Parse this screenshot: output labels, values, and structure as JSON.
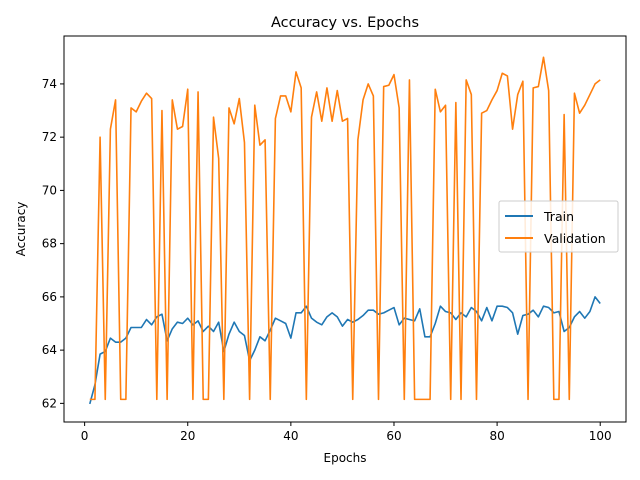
{
  "chart_data": {
    "type": "line",
    "title": "Accuracy vs. Epochs",
    "xlabel": "Epochs",
    "ylabel": "Accuracy",
    "xlim": [
      -4,
      105
    ],
    "ylim": [
      61.3,
      75.8
    ],
    "xticks": [
      0,
      20,
      40,
      60,
      80,
      100
    ],
    "yticks": [
      62,
      64,
      66,
      68,
      70,
      72,
      74
    ],
    "grid": false,
    "legend_position": "center-right",
    "x": [
      1,
      2,
      3,
      4,
      5,
      6,
      7,
      8,
      9,
      10,
      11,
      12,
      13,
      14,
      15,
      16,
      17,
      18,
      19,
      20,
      21,
      22,
      23,
      24,
      25,
      26,
      27,
      28,
      29,
      30,
      31,
      32,
      33,
      34,
      35,
      36,
      37,
      38,
      39,
      40,
      41,
      42,
      43,
      44,
      45,
      46,
      47,
      48,
      49,
      50,
      51,
      52,
      53,
      54,
      55,
      56,
      57,
      58,
      59,
      60,
      61,
      62,
      63,
      64,
      65,
      66,
      67,
      68,
      69,
      70,
      71,
      72,
      73,
      74,
      75,
      76,
      77,
      78,
      79,
      80,
      81,
      82,
      83,
      84,
      85,
      86,
      87,
      88,
      89,
      90,
      91,
      92,
      93,
      94,
      95,
      96,
      97,
      98,
      99,
      100
    ],
    "series": [
      {
        "name": "Train",
        "color": "#1f77b4",
        "values": [
          61.98,
          62.7,
          63.85,
          63.95,
          64.45,
          64.3,
          64.3,
          64.45,
          64.85,
          64.85,
          64.85,
          65.15,
          64.95,
          65.25,
          65.35,
          64.35,
          64.8,
          65.05,
          65.0,
          65.2,
          64.95,
          65.1,
          64.7,
          64.9,
          64.7,
          65.05,
          63.95,
          64.6,
          65.05,
          64.7,
          64.55,
          63.6,
          64.0,
          64.5,
          64.35,
          64.75,
          65.2,
          65.1,
          65.0,
          64.45,
          65.4,
          65.4,
          65.65,
          65.2,
          65.05,
          64.95,
          65.25,
          65.4,
          65.25,
          64.9,
          65.15,
          65.05,
          65.15,
          65.3,
          65.5,
          65.5,
          65.35,
          65.4,
          65.5,
          65.6,
          64.95,
          65.2,
          65.15,
          65.1,
          65.55,
          64.5,
          64.5,
          65.0,
          65.65,
          65.45,
          65.4,
          65.15,
          65.4,
          65.25,
          65.6,
          65.45,
          65.1,
          65.6,
          65.1,
          65.65,
          65.65,
          65.6,
          65.4,
          64.6,
          65.3,
          65.35,
          65.5,
          65.25,
          65.65,
          65.6,
          65.4,
          65.45,
          64.7,
          64.85,
          65.25,
          65.45,
          65.2,
          65.45,
          66.0,
          65.75
        ]
      },
      {
        "name": "Validation",
        "color": "#ff7f0e",
        "values": [
          62.15,
          62.15,
          72.0,
          62.15,
          72.3,
          73.4,
          62.15,
          62.15,
          73.1,
          72.95,
          73.35,
          73.65,
          73.45,
          62.15,
          73.0,
          62.15,
          73.4,
          72.3,
          72.4,
          73.8,
          62.15,
          73.7,
          62.15,
          62.15,
          72.75,
          71.2,
          62.15,
          73.1,
          72.5,
          73.45,
          71.8,
          62.15,
          73.2,
          71.7,
          71.9,
          62.15,
          72.7,
          73.55,
          73.55,
          72.95,
          74.45,
          73.85,
          62.15,
          72.75,
          73.7,
          72.6,
          73.85,
          72.6,
          73.75,
          72.6,
          72.7,
          62.15,
          71.9,
          73.4,
          74.0,
          73.55,
          62.15,
          73.9,
          73.95,
          74.35,
          73.1,
          62.15,
          74.15,
          62.15,
          62.15,
          62.15,
          62.15,
          73.8,
          72.95,
          73.2,
          62.15,
          73.3,
          62.15,
          74.15,
          73.6,
          62.15,
          72.9,
          73.0,
          73.4,
          73.75,
          74.4,
          74.3,
          72.3,
          73.6,
          74.1,
          62.15,
          73.85,
          73.9,
          75.0,
          73.75,
          62.15,
          62.15,
          72.85,
          62.15,
          73.65,
          72.9,
          73.2,
          73.6,
          74.0,
          74.15
        ]
      }
    ]
  }
}
